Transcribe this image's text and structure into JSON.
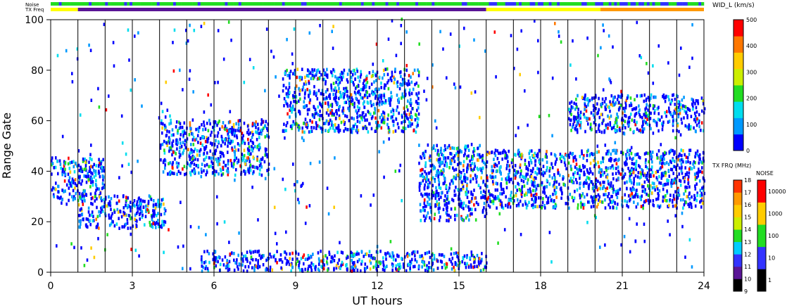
{
  "chart_data": {
    "type": "heatmap",
    "xlabel": "UT hours",
    "ylabel": "Range Gate",
    "xlim": [
      0,
      24
    ],
    "ylim": [
      0,
      100
    ],
    "xticks": [
      0,
      3,
      6,
      9,
      12,
      15,
      18,
      21,
      24
    ],
    "yticks": [
      0,
      20,
      40,
      60,
      80,
      100
    ],
    "grid_vertical_hours": [
      1,
      2,
      3,
      4,
      5,
      6,
      7,
      8,
      9,
      10,
      11,
      12,
      13,
      14,
      15,
      16,
      17,
      18,
      19,
      20,
      21,
      22,
      23
    ],
    "top_strips": [
      {
        "label": "Noise",
        "dominant_color": "#22dd22"
      },
      {
        "label": "TX Freq",
        "segments": [
          {
            "x0": 0,
            "x1": 1,
            "color": "#ffff00"
          },
          {
            "x0": 1,
            "x1": 16,
            "color": "#5a1496"
          },
          {
            "x0": 16,
            "x1": 20.2,
            "color": "#ffff00"
          },
          {
            "x0": 20.2,
            "x1": 24,
            "color": "#ff9900"
          }
        ]
      }
    ],
    "series_description": [
      {
        "name": "scatter band",
        "x_range": [
          0,
          2
        ],
        "y_range": [
          28,
          45
        ]
      },
      {
        "name": "scatter band",
        "x_range": [
          1,
          4.2
        ],
        "y_range": [
          17,
          30
        ]
      },
      {
        "name": "scatter band",
        "x_range": [
          4,
          8
        ],
        "y_range": [
          38,
          60
        ]
      },
      {
        "name": "scatter band",
        "x_range": [
          8.5,
          13.5
        ],
        "y_range": [
          55,
          80
        ]
      },
      {
        "name": "scatter band",
        "x_range": [
          13.5,
          16
        ],
        "y_range": [
          20,
          50
        ]
      },
      {
        "name": "scatter band",
        "x_range": [
          16,
          24
        ],
        "y_range": [
          25,
          48
        ]
      },
      {
        "name": "scatter band",
        "x_range": [
          19,
          24
        ],
        "y_range": [
          55,
          70
        ]
      },
      {
        "name": "ground scatter",
        "x_range": [
          5.5,
          16
        ],
        "y_range": [
          0,
          8
        ]
      }
    ],
    "colorbars": [
      {
        "title": "WID_L (km/s)",
        "range": [
          0,
          500
        ],
        "ticks": [
          0,
          100,
          200,
          300,
          400,
          500
        ],
        "colors": [
          "#0000ff",
          "#0099ff",
          "#00ddee",
          "#22dd22",
          "#ccee00",
          "#ffcc00",
          "#ff7700",
          "#ff0000"
        ]
      },
      {
        "title": "TX FRQ (MHz)",
        "ticks": [
          9,
          10,
          11,
          12,
          13,
          14,
          15,
          16,
          17,
          18
        ],
        "colors": [
          "#000000",
          "#5a1496",
          "#3333ff",
          "#00ccff",
          "#22dd22",
          "#ccee00",
          "#ffcc00",
          "#ff9900",
          "#ff3300"
        ]
      },
      {
        "title": "NOISE",
        "ticks": [
          "1",
          "10",
          "100",
          "1000",
          "10000"
        ],
        "colors": [
          "#000000",
          "#3333ff",
          "#22dd22",
          "#ffcc00",
          "#ff0000"
        ]
      }
    ]
  }
}
